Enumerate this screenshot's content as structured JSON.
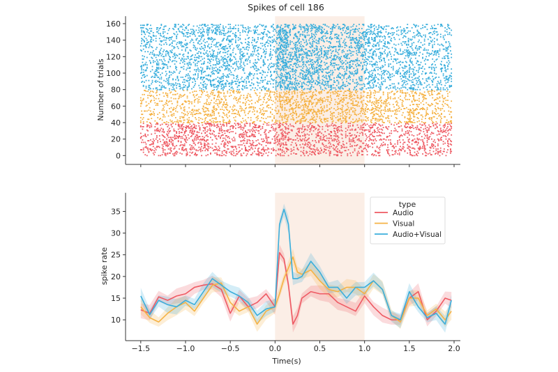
{
  "chart_data": [
    {
      "type": "scatter",
      "title": "Spikes of cell 186",
      "xlabel": "",
      "ylabel": "Number of trials",
      "xlim": [
        -1.67,
        2.07
      ],
      "ylim": [
        -10.7,
        169
      ],
      "xticks": [
        -1.5,
        -1.0,
        -0.5,
        0.0,
        0.5,
        1.0,
        1.5,
        2.0
      ],
      "xtick_labels_shown": false,
      "yticks": [
        0,
        20,
        40,
        60,
        80,
        100,
        120,
        140,
        160
      ],
      "ytick_labels": [
        "0",
        "20",
        "40",
        "60",
        "80",
        "100",
        "120",
        "140",
        "160"
      ],
      "stimulus_window": [
        0.0,
        1.0
      ],
      "groups": [
        {
          "condition": "Audio",
          "trials": [
            0,
            39
          ],
          "color": "#ee5a63"
        },
        {
          "condition": "Visual",
          "trials": [
            40,
            79
          ],
          "color": "#f5b244"
        },
        {
          "condition": "Audio+Visual",
          "trials": [
            80,
            159
          ],
          "color": "#3aaedc"
        }
      ]
    },
    {
      "type": "line",
      "xlabel": "Time(s)",
      "ylabel": "spike rate",
      "xlim": [
        -1.67,
        2.07
      ],
      "ylim": [
        5.2,
        39.3
      ],
      "xticks": [
        -1.5,
        -1.0,
        -0.5,
        0.0,
        0.5,
        1.0,
        1.5,
        2.0
      ],
      "xtick_labels": [
        "−1.5",
        "−1.0",
        "−0.5",
        "0.0",
        "0.5",
        "1.0",
        "1.5",
        "2.0"
      ],
      "yticks": [
        10,
        15,
        20,
        25,
        30,
        35
      ],
      "ytick_labels": [
        "10",
        "15",
        "20",
        "25",
        "30",
        "35"
      ],
      "stimulus_window": [
        0.0,
        1.0
      ],
      "legend": {
        "title": "type",
        "placement": "top-right"
      },
      "ci_halfwidth": 1.5,
      "x": [
        -1.5,
        -1.4,
        -1.3,
        -1.2,
        -1.1,
        -1.0,
        -0.9,
        -0.8,
        -0.7,
        -0.6,
        -0.5,
        -0.4,
        -0.3,
        -0.2,
        -0.1,
        0.0,
        0.05,
        0.1,
        0.15,
        0.2,
        0.25,
        0.3,
        0.4,
        0.5,
        0.6,
        0.7,
        0.8,
        0.9,
        1.0,
        1.1,
        1.2,
        1.3,
        1.4,
        1.5,
        1.6,
        1.7,
        1.8,
        1.9,
        1.97
      ],
      "series": [
        {
          "name": "Audio",
          "color": "#ee5a63",
          "values": [
            12.3,
            11.5,
            15.3,
            14.5,
            15.5,
            16,
            17.5,
            18,
            18.3,
            17,
            11.5,
            15.5,
            13,
            14,
            16,
            13,
            25.5,
            24,
            18,
            9,
            11,
            15,
            16.5,
            16,
            16,
            14,
            13,
            12,
            15.5,
            13,
            11,
            10,
            10,
            15,
            16.5,
            10,
            12,
            15,
            14.5
          ]
        },
        {
          "name": "Visual",
          "color": "#f5b244",
          "values": [
            13,
            10.5,
            9.5,
            11.5,
            13,
            14,
            12,
            15,
            18,
            18.5,
            14,
            12,
            13,
            9,
            12,
            13,
            16,
            19.5,
            22,
            24.5,
            21,
            20.5,
            21.5,
            19,
            17,
            16.5,
            17.5,
            17.5,
            16,
            19,
            17,
            11,
            9.5,
            15,
            15,
            11,
            12.5,
            10,
            12
          ]
        },
        {
          "name": "Audio+Visual",
          "color": "#3aaedc",
          "values": [
            15.5,
            11.2,
            14.5,
            13.5,
            13,
            14.5,
            13.5,
            16.5,
            19.5,
            18,
            16.5,
            15.5,
            14,
            11,
            12.5,
            13,
            32,
            35.5,
            32,
            19.5,
            19.5,
            20,
            23.5,
            21,
            17.5,
            17.5,
            15,
            17.5,
            17.5,
            19,
            17,
            11,
            10,
            16.5,
            13,
            10.5,
            11.5,
            9,
            14.5
          ]
        }
      ]
    }
  ],
  "shade_color": "#fbeee6"
}
